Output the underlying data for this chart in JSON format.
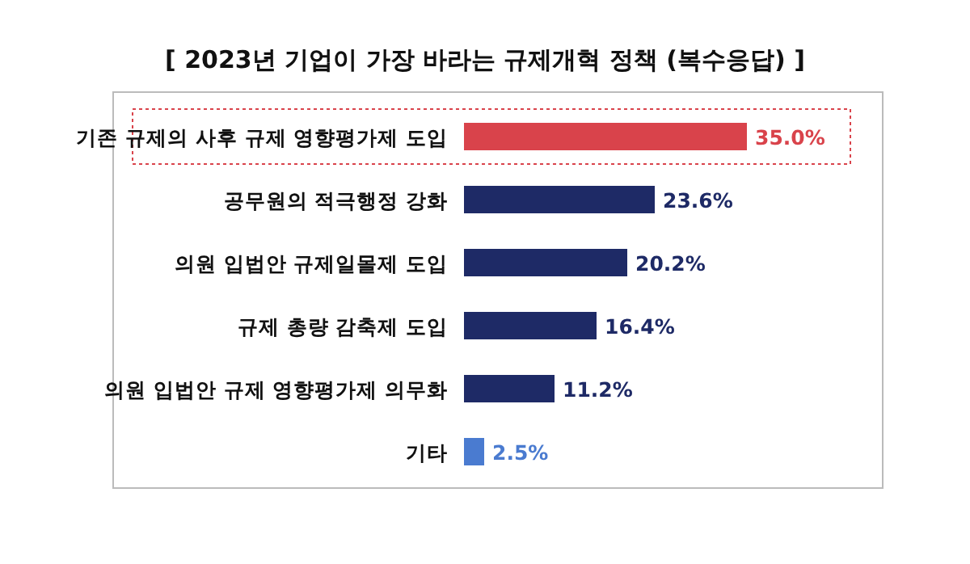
{
  "chart_data": {
    "type": "bar",
    "orientation": "horizontal",
    "title": "[ 2023년 기업이 가장 바라는 규제개혁 정책 (복수응답) ]",
    "categories": [
      "기존 규제의 사후 규제 영향평가제 도입",
      "공무원의 적극행정 강화",
      "의원 입법안 규제일몰제 도입",
      "규제 총량 감축제 도입",
      "의원 입법안 규제 영향평가제 의무화",
      "기타"
    ],
    "values": [
      35.0,
      23.6,
      20.2,
      16.4,
      11.2,
      2.5
    ],
    "value_labels": [
      "35.0%",
      "23.6%",
      "20.2%",
      "16.4%",
      "11.2%",
      "2.5%"
    ],
    "colors": [
      "#d9434b",
      "#1e2a66",
      "#1e2a66",
      "#1e2a66",
      "#1e2a66",
      "#4a7bd0"
    ]
  }
}
